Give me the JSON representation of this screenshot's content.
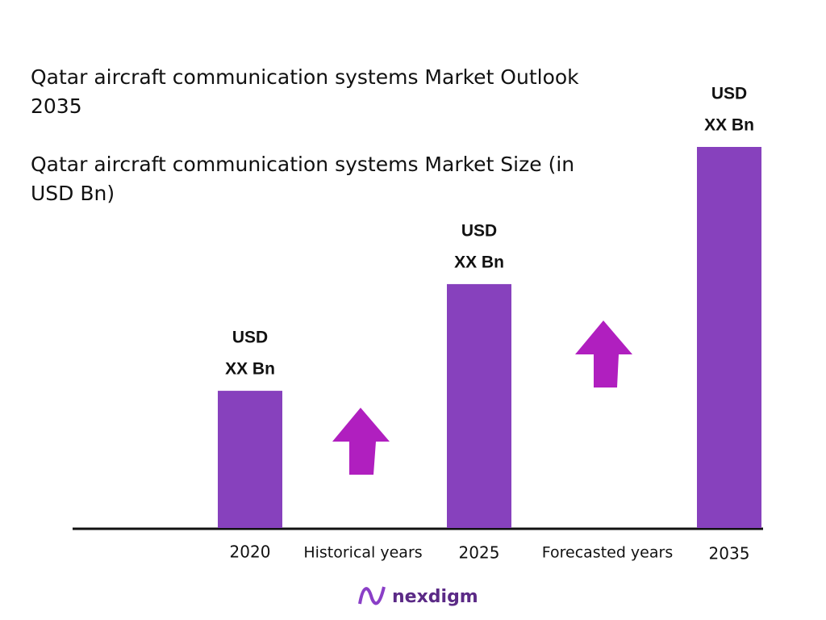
{
  "chart_data": {
    "type": "bar",
    "title": "Qatar aircraft communication systems Market Outlook 2035",
    "subtitle": "Qatar aircraft communication systems Market Size (in USD Bn)",
    "categories": [
      "2020",
      "2025",
      "2035"
    ],
    "values": [
      36,
      64,
      100
    ],
    "value_labels": [
      [
        "USD",
        "XX Bn"
      ],
      [
        "USD",
        "XX Bn"
      ],
      [
        "USD",
        "XX Bn"
      ]
    ],
    "color": "#8741bd",
    "annotations": [
      "Historical years",
      "Forecasted years"
    ],
    "logo": "nexdigm"
  }
}
